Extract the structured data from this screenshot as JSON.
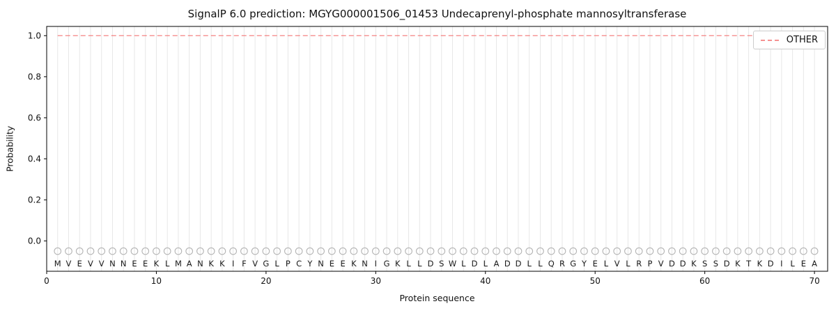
{
  "chart_data": {
    "type": "line",
    "title": "SignalP 6.0 prediction: MGYG000001506_01453 Undecaprenyl-phosphate mannosyltransferase",
    "xlabel": "Protein sequence",
    "ylabel": "Probability",
    "xlim": [
      0,
      71.2
    ],
    "ylim": [
      -0.148,
      1.045
    ],
    "x_ticks": [
      0,
      10,
      20,
      30,
      40,
      50,
      60,
      70
    ],
    "y_ticks": [
      0.0,
      0.2,
      0.4,
      0.6,
      0.8,
      1.0
    ],
    "grid": true,
    "grid_color": "#e7e7e7",
    "frame_color": "#000000",
    "legend_position": "upper right",
    "sequence": "MVEVVNNEEKLMANKKIFVGLPCYNEEKNIGKLLDSWLDLADDLLQRGYELVLRPVDDKSSDKTKDILEA",
    "sequence_letter_color": "#1a1a1a",
    "sequence_letter_y": -0.11,
    "markers": {
      "shape": "circle",
      "color": "#b3b3b3",
      "y": -0.05
    },
    "x_values": [
      1,
      2,
      3,
      4,
      5,
      6,
      7,
      8,
      9,
      10,
      11,
      12,
      13,
      14,
      15,
      16,
      17,
      18,
      19,
      20,
      21,
      22,
      23,
      24,
      25,
      26,
      27,
      28,
      29,
      30,
      31,
      32,
      33,
      34,
      35,
      36,
      37,
      38,
      39,
      40,
      41,
      42,
      43,
      44,
      45,
      46,
      47,
      48,
      49,
      50,
      51,
      52,
      53,
      54,
      55,
      56,
      57,
      58,
      59,
      60,
      61,
      62,
      63,
      64,
      65,
      66,
      67,
      68,
      69,
      70
    ],
    "series": [
      {
        "name": "OTHER",
        "color": "#f26d6d",
        "style": "dashed",
        "values": [
          1.0,
          1.0,
          1.0,
          1.0,
          1.0,
          1.0,
          1.0,
          1.0,
          1.0,
          1.0,
          1.0,
          1.0,
          1.0,
          1.0,
          1.0,
          1.0,
          1.0,
          1.0,
          1.0,
          1.0,
          1.0,
          1.0,
          1.0,
          1.0,
          1.0,
          1.0,
          1.0,
          1.0,
          1.0,
          1.0,
          1.0,
          1.0,
          1.0,
          1.0,
          1.0,
          1.0,
          1.0,
          1.0,
          1.0,
          1.0,
          1.0,
          1.0,
          1.0,
          1.0,
          1.0,
          1.0,
          1.0,
          1.0,
          1.0,
          1.0,
          1.0,
          1.0,
          1.0,
          1.0,
          1.0,
          1.0,
          1.0,
          1.0,
          1.0,
          1.0,
          1.0,
          1.0,
          1.0,
          1.0,
          1.0,
          1.0,
          1.0,
          1.0,
          1.0,
          1.0
        ]
      }
    ]
  }
}
